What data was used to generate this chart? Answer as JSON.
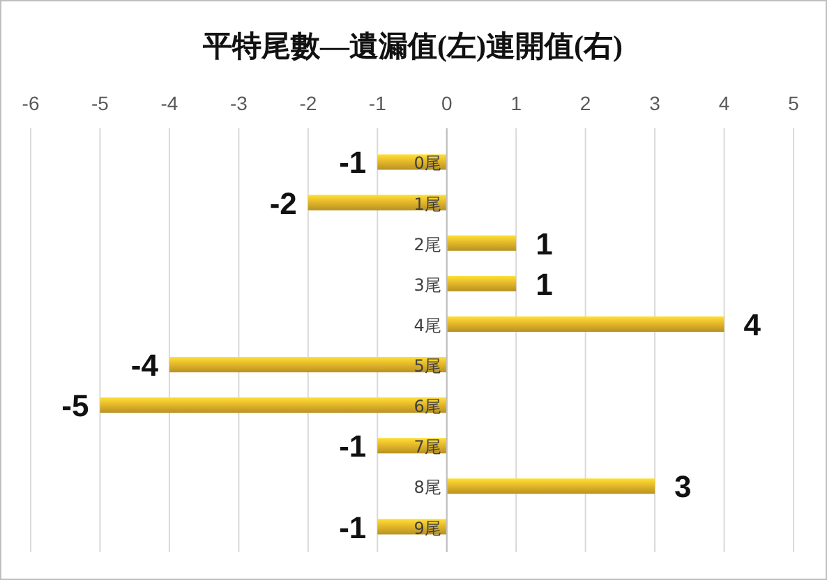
{
  "chart_data": {
    "type": "bar",
    "orientation": "horizontal",
    "title": "平特尾數—遺漏值(左)連開值(右)",
    "categories": [
      "0尾",
      "1尾",
      "2尾",
      "3尾",
      "4尾",
      "5尾",
      "6尾",
      "7尾",
      "8尾",
      "9尾"
    ],
    "values": [
      -1,
      -2,
      1,
      1,
      4,
      -4,
      -5,
      -1,
      3,
      -1
    ],
    "color": "#e2b52a",
    "xlim": [
      -6,
      5
    ],
    "xticks": [
      -6,
      -5,
      -4,
      -3,
      -2,
      -1,
      0,
      1,
      2,
      3,
      4,
      5
    ],
    "grid": "x",
    "data_labels": true
  }
}
